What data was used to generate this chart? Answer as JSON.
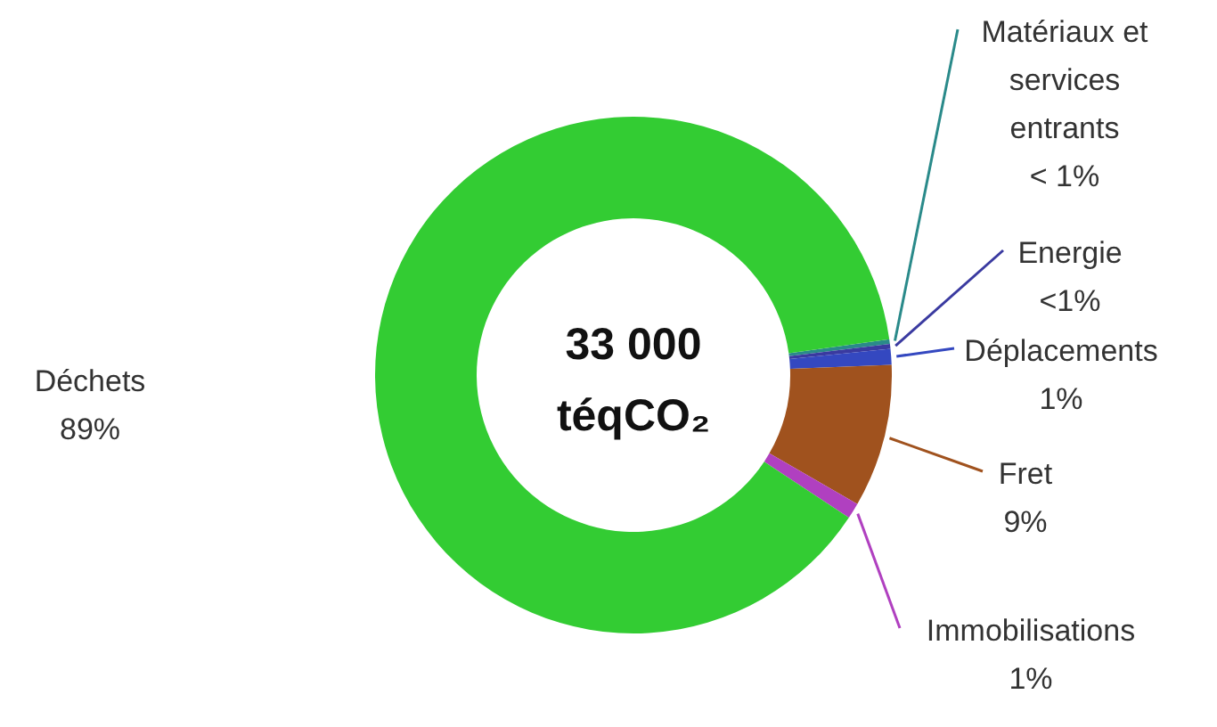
{
  "chart_data": {
    "type": "donut",
    "title": "33 000\ntéqCO₂",
    "categories": [
      "Matériaux et services entrants",
      "Energie",
      "Déplacements",
      "Fret",
      "Immobilisations",
      "Déchets"
    ],
    "values": [
      0.3,
      0.3,
      1,
      9,
      1,
      89
    ],
    "value_labels": [
      "< 1%",
      "<1%",
      "1%",
      "9%",
      "1%",
      "89%"
    ],
    "colors": [
      "#2a8a8a",
      "#3a3aa0",
      "#3448c0",
      "#a0521e",
      "#b040c0",
      "#33cc33"
    ]
  }
}
